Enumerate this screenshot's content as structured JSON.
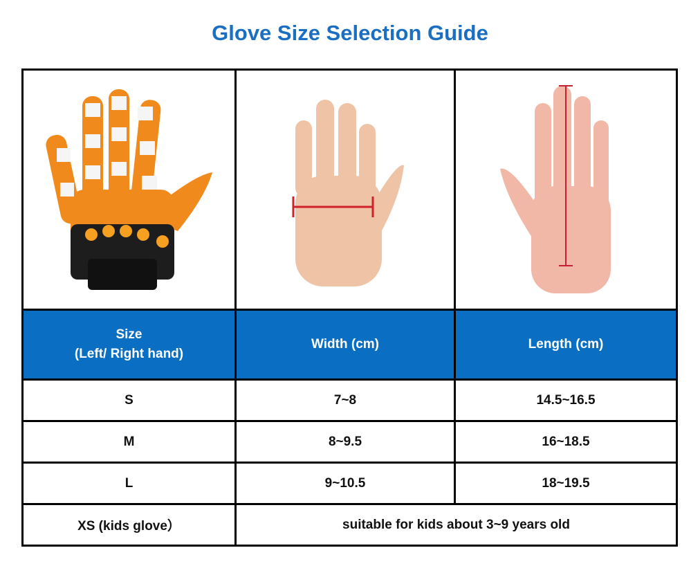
{
  "title": "Glove Size Selection Guide",
  "colors": {
    "title": "#1a6fc2",
    "header_bg": "#0a6fc2",
    "header_text": "#ffffff",
    "border": "#000000",
    "measure_line": "#d0202a"
  },
  "images": [
    "robotic-rehabilitation-glove-photo",
    "hand-width-measurement",
    "hand-length-measurement"
  ],
  "header": {
    "size_line1": "Size",
    "size_line2": "(Left/ Right hand)",
    "width": "Width (cm)",
    "length": "Length (cm)"
  },
  "rows": [
    {
      "size": "S",
      "width": "7~8",
      "length": "14.5~16.5"
    },
    {
      "size": "M",
      "width": "8~9.5",
      "length": "16~18.5"
    },
    {
      "size": "L",
      "width": "9~10.5",
      "length": "18~19.5"
    }
  ],
  "kids": {
    "size": "XS (kids glove）",
    "note": "suitable for kids about 3~9 years old"
  }
}
